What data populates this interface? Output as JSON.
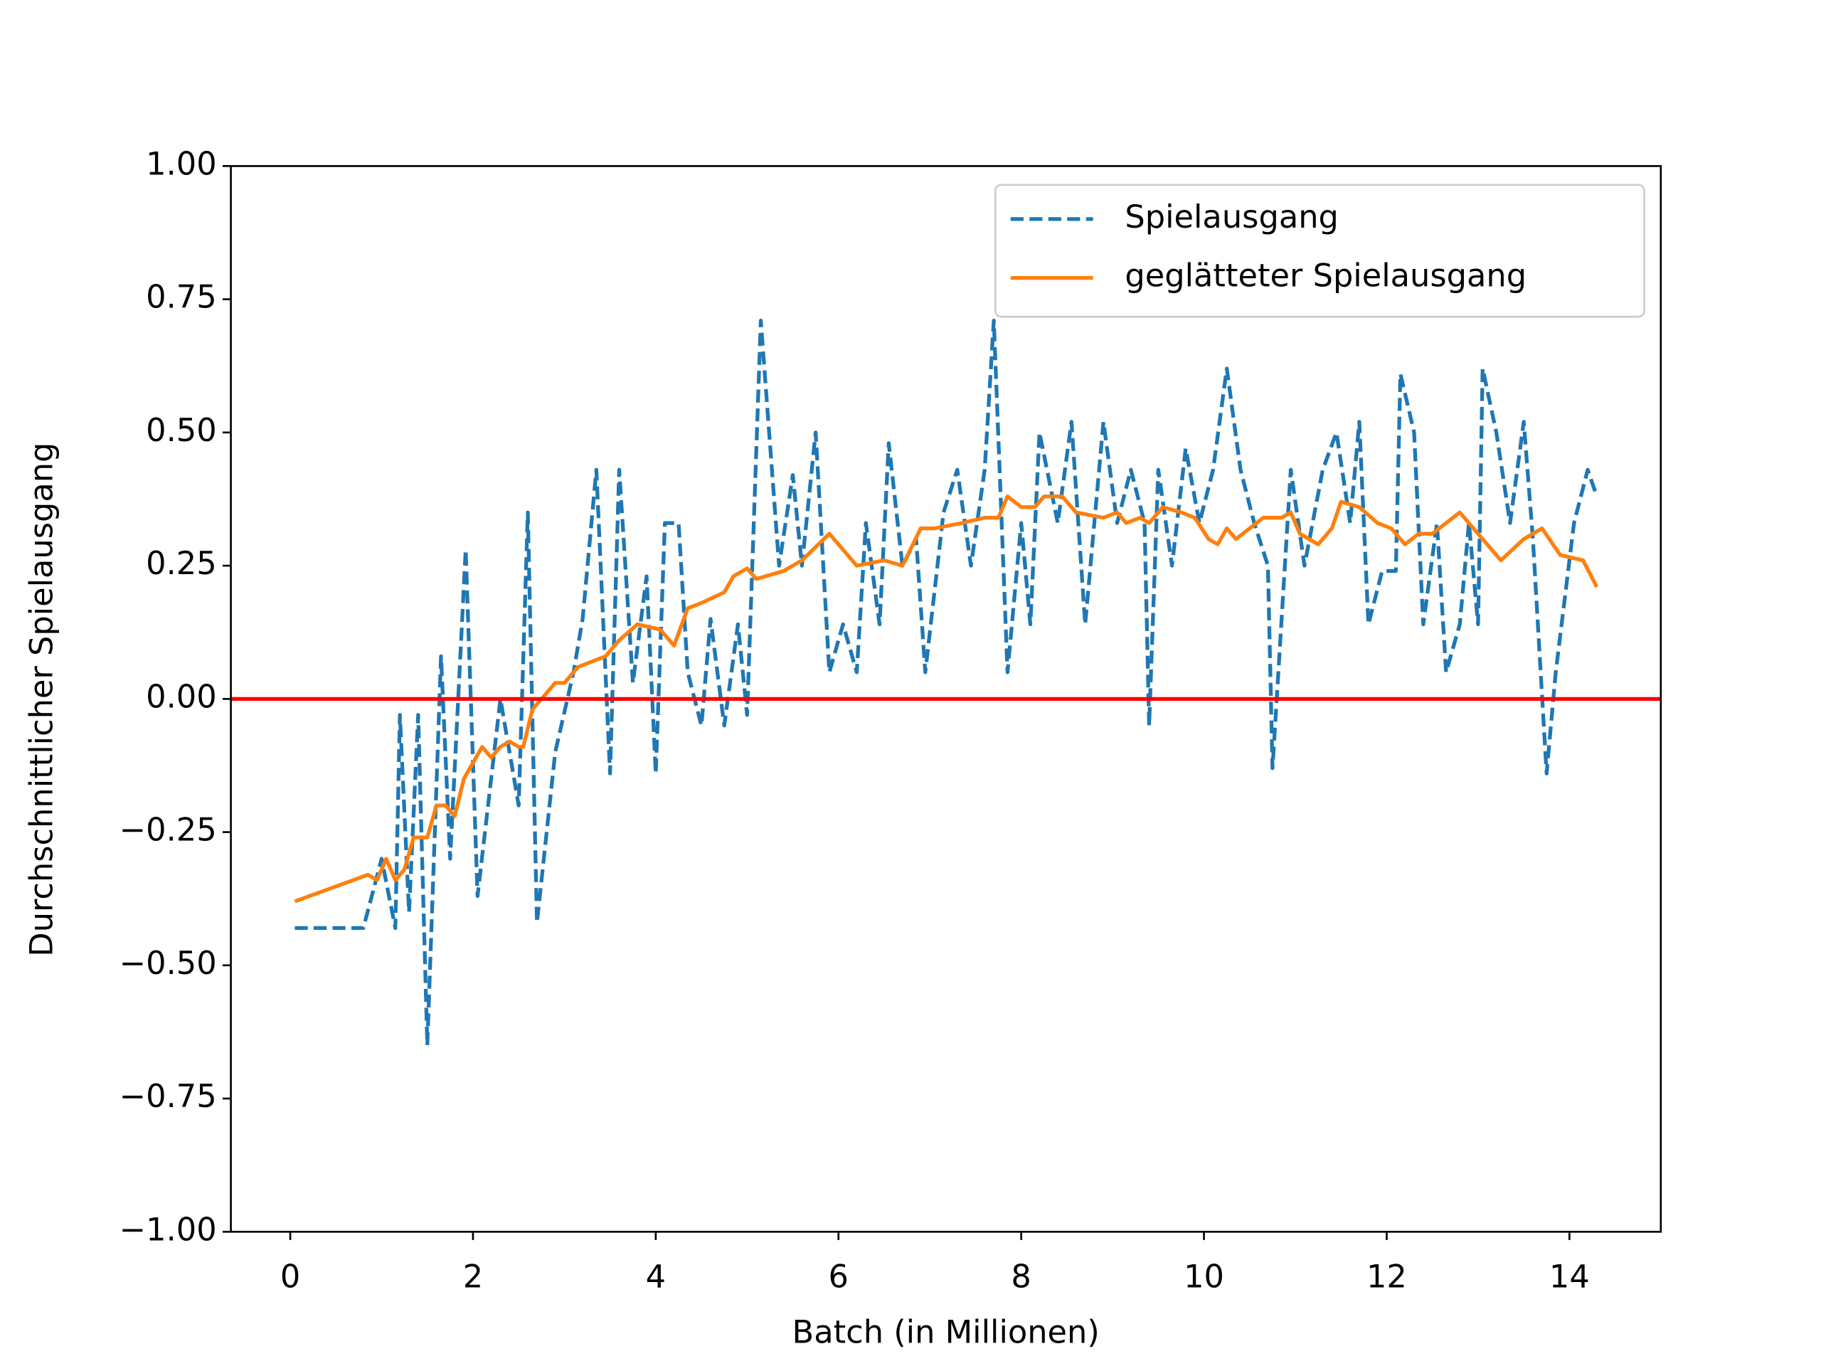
{
  "chart_data": {
    "type": "line",
    "xlabel": "Batch (in Millionen)",
    "ylabel": "Durchschnittlicher Spielausgang",
    "xlim": [
      -0.65,
      15.0
    ],
    "ylim": [
      -1,
      1
    ],
    "xticks": [
      0,
      2,
      4,
      6,
      8,
      10,
      12,
      14
    ],
    "yticks": [
      {
        "value": -1,
        "label": "−1.00"
      },
      {
        "value": -0.75,
        "label": "−0.75"
      },
      {
        "value": -0.5,
        "label": "−0.50"
      },
      {
        "value": -0.25,
        "label": "−0.25"
      },
      {
        "value": 0,
        "label": "0.00"
      },
      {
        "value": 0.25,
        "label": "0.25"
      },
      {
        "value": 0.5,
        "label": "0.50"
      },
      {
        "value": 0.75,
        "label": "0.75"
      },
      {
        "value": 1,
        "label": "1.00"
      }
    ],
    "hline": {
      "y": 0,
      "color": "#ff0000"
    },
    "legend": "upper right",
    "series": [
      {
        "name": "Spielausgang",
        "color": "#1f77b4",
        "linestyle": "dashed",
        "x": [
          0.05,
          0.8,
          1.0,
          1.15,
          1.2,
          1.3,
          1.4,
          1.5,
          1.65,
          1.75,
          1.92,
          2.05,
          2.3,
          2.5,
          2.6,
          2.7,
          2.9,
          3.1,
          3.2,
          3.35,
          3.5,
          3.6,
          3.75,
          3.9,
          4.0,
          4.1,
          4.25,
          4.35,
          4.5,
          4.6,
          4.75,
          4.9,
          5.0,
          5.15,
          5.35,
          5.5,
          5.6,
          5.75,
          5.9,
          6.05,
          6.2,
          6.3,
          6.45,
          6.55,
          6.7,
          6.85,
          6.95,
          7.15,
          7.3,
          7.45,
          7.6,
          7.7,
          7.85,
          8.0,
          8.1,
          8.2,
          8.4,
          8.55,
          8.7,
          8.9,
          9.05,
          9.2,
          9.35,
          9.4,
          9.5,
          9.65,
          9.8,
          9.95,
          10.1,
          10.25,
          10.4,
          10.55,
          10.7,
          10.75,
          10.95,
          11.1,
          11.3,
          11.45,
          11.6,
          11.7,
          11.8,
          11.95,
          12.1,
          12.15,
          12.3,
          12.4,
          12.55,
          12.65,
          12.8,
          12.9,
          13.0,
          13.05,
          13.2,
          13.35,
          13.5,
          13.6,
          13.75,
          13.85,
          14.05,
          14.2,
          14.3
        ],
        "values": [
          -0.43,
          -0.43,
          -0.3,
          -0.43,
          -0.03,
          -0.4,
          -0.03,
          -0.65,
          0.08,
          -0.3,
          0.28,
          -0.37,
          0.0,
          -0.2,
          0.35,
          -0.42,
          -0.1,
          0.05,
          0.15,
          0.43,
          -0.14,
          0.43,
          0.03,
          0.23,
          -0.14,
          0.33,
          0.33,
          0.05,
          -0.05,
          0.15,
          -0.05,
          0.14,
          -0.03,
          0.71,
          0.25,
          0.42,
          0.25,
          0.5,
          0.05,
          0.14,
          0.05,
          0.33,
          0.14,
          0.48,
          0.25,
          0.3,
          0.05,
          0.35,
          0.43,
          0.25,
          0.43,
          0.71,
          0.05,
          0.33,
          0.14,
          0.5,
          0.33,
          0.52,
          0.14,
          0.52,
          0.33,
          0.43,
          0.33,
          -0.05,
          0.43,
          0.25,
          0.47,
          0.33,
          0.43,
          0.62,
          0.43,
          0.33,
          0.25,
          -0.13,
          0.43,
          0.25,
          0.43,
          0.5,
          0.33,
          0.52,
          0.14,
          0.24,
          0.24,
          0.61,
          0.5,
          0.14,
          0.33,
          0.05,
          0.14,
          0.33,
          0.14,
          0.62,
          0.5,
          0.33,
          0.52,
          0.3,
          -0.14,
          0.05,
          0.33,
          0.43,
          0.38
        ]
      },
      {
        "name": "geglätteter Spielausgang",
        "color": "#ff7f0e",
        "linestyle": "solid",
        "x": [
          0.05,
          0.85,
          0.95,
          1.05,
          1.15,
          1.25,
          1.35,
          1.5,
          1.6,
          1.7,
          1.8,
          1.9,
          2.1,
          2.2,
          2.3,
          2.4,
          2.5,
          2.55,
          2.65,
          2.8,
          2.9,
          3.0,
          3.15,
          3.3,
          3.45,
          3.6,
          3.8,
          4.05,
          4.2,
          4.35,
          4.5,
          4.75,
          4.85,
          5.0,
          5.1,
          5.4,
          5.6,
          5.9,
          6.2,
          6.5,
          6.7,
          6.9,
          7.05,
          7.35,
          7.6,
          7.75,
          7.85,
          8.0,
          8.15,
          8.25,
          8.45,
          8.6,
          8.9,
          9.05,
          9.15,
          9.3,
          9.4,
          9.55,
          9.75,
          9.9,
          10.05,
          10.15,
          10.25,
          10.35,
          10.5,
          10.65,
          10.85,
          10.95,
          11.05,
          11.25,
          11.4,
          11.5,
          11.7,
          11.9,
          12.05,
          12.2,
          12.35,
          12.5,
          12.65,
          12.8,
          12.95,
          13.25,
          13.5,
          13.7,
          13.9,
          14.15,
          14.3
        ],
        "values": [
          -0.38,
          -0.33,
          -0.34,
          -0.3,
          -0.34,
          -0.32,
          -0.26,
          -0.26,
          -0.2,
          -0.2,
          -0.22,
          -0.15,
          -0.09,
          -0.11,
          -0.09,
          -0.08,
          -0.09,
          -0.09,
          -0.02,
          0.01,
          0.03,
          0.03,
          0.06,
          0.07,
          0.08,
          0.11,
          0.14,
          0.13,
          0.1,
          0.17,
          0.18,
          0.2,
          0.23,
          0.245,
          0.225,
          0.24,
          0.26,
          0.31,
          0.25,
          0.26,
          0.25,
          0.32,
          0.32,
          0.33,
          0.34,
          0.34,
          0.38,
          0.36,
          0.36,
          0.38,
          0.38,
          0.35,
          0.34,
          0.35,
          0.33,
          0.34,
          0.33,
          0.36,
          0.35,
          0.34,
          0.3,
          0.29,
          0.32,
          0.3,
          0.32,
          0.34,
          0.34,
          0.35,
          0.31,
          0.29,
          0.32,
          0.37,
          0.36,
          0.33,
          0.32,
          0.29,
          0.31,
          0.31,
          0.33,
          0.35,
          0.32,
          0.26,
          0.3,
          0.32,
          0.27,
          0.26,
          0.21
        ]
      }
    ]
  }
}
